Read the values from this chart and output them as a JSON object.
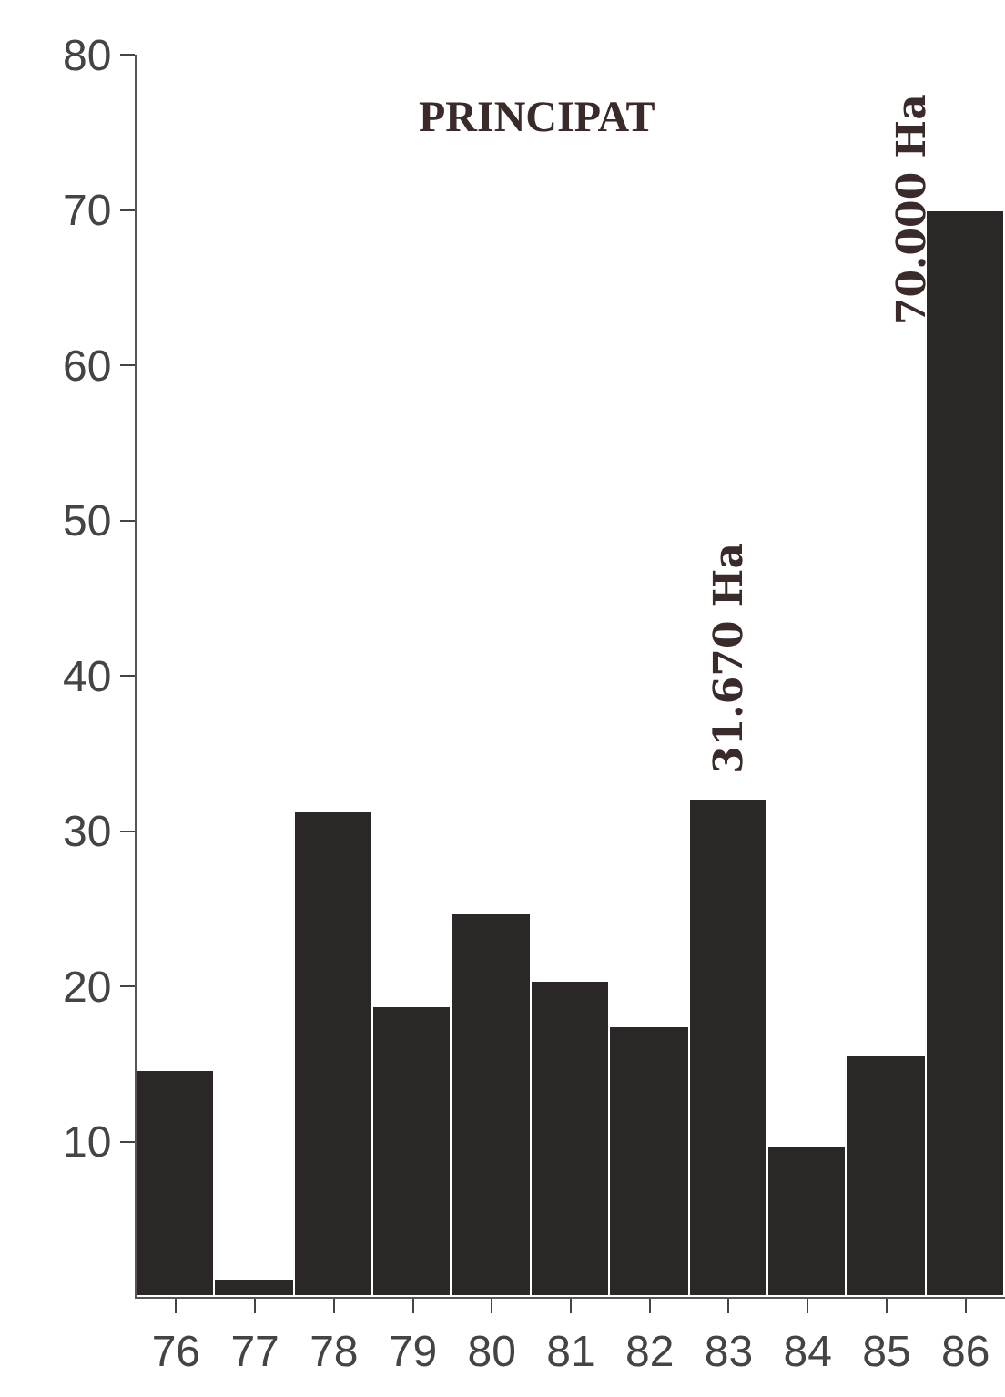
{
  "chart_data": {
    "type": "bar",
    "title": "PRINCIPAT",
    "categories": [
      "76",
      "77",
      "78",
      "79",
      "80",
      "81",
      "82",
      "83",
      "84",
      "85",
      "86"
    ],
    "values": [
      14.6,
      1,
      31.2,
      18.6,
      24.6,
      20.3,
      17.4,
      32,
      9.6,
      15.5,
      69.9
    ],
    "color": "#2b2727",
    "ylim": [
      0,
      80
    ],
    "yticks": [
      10,
      20,
      30,
      40,
      50,
      60,
      70,
      80
    ],
    "annotations": [
      {
        "text": "31.670 Ha",
        "x": "83",
        "y": 32
      },
      {
        "text": "70.000 Ha",
        "x": "86",
        "y": 70
      }
    ]
  }
}
